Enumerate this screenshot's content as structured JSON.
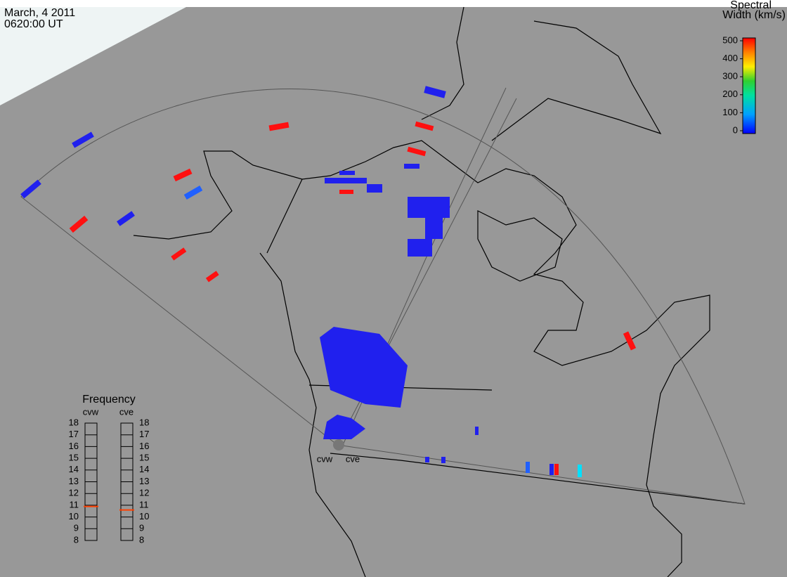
{
  "header": {
    "date": "March, 4 2011",
    "time": "0620:00 UT"
  },
  "colorbar": {
    "title": [
      "Spectral",
      "Width (km/s)"
    ],
    "range": [
      0,
      500
    ],
    "ticks": [
      0,
      100,
      200,
      300,
      400,
      500
    ]
  },
  "frequency": {
    "title": "Frequency",
    "range": [
      8,
      18
    ],
    "ticks": [
      8,
      9,
      10,
      11,
      12,
      13,
      14,
      15,
      16,
      17,
      18
    ],
    "radars": [
      {
        "name": "cvw",
        "value": 10.9
      },
      {
        "name": "cve",
        "value": 10.6
      }
    ]
  },
  "radar_labels": [
    "cvw",
    "cve"
  ]
}
